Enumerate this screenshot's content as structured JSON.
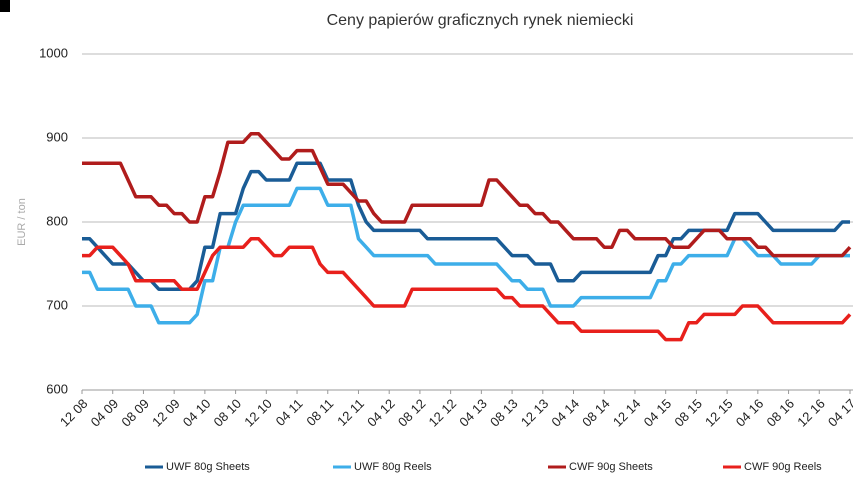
{
  "chart_data": {
    "type": "line",
    "title": "Ceny papierów graficznych rynek niemiecki",
    "y_label": "EUR / ton",
    "categories": [
      "12 08",
      null,
      null,
      null,
      "04 09",
      null,
      null,
      null,
      "08 09",
      null,
      null,
      null,
      "12 09",
      null,
      null,
      null,
      "04 10",
      null,
      null,
      null,
      "08 10",
      null,
      null,
      null,
      "12 10",
      null,
      null,
      null,
      "04 11",
      null,
      null,
      null,
      "08 11",
      null,
      null,
      null,
      "12 11",
      null,
      null,
      null,
      "04 12",
      null,
      null,
      null,
      "08 12",
      null,
      null,
      null,
      "12 12",
      null,
      null,
      null,
      "04 13",
      null,
      null,
      null,
      "08 13",
      null,
      null,
      null,
      "12 13",
      null,
      null,
      null,
      "04 14",
      null,
      null,
      null,
      "08 14",
      null,
      null,
      null,
      "12 14",
      null,
      null,
      null,
      "04 15",
      null,
      null,
      null,
      "08 15",
      null,
      null,
      null,
      "12 15",
      null,
      null,
      null,
      "04 16",
      null,
      null,
      null,
      "08 16",
      null,
      null,
      null,
      "12 16",
      null,
      null,
      null,
      "04 17"
    ],
    "series": [
      {
        "name": "UWF 80g Sheets",
        "color": "#1a5c96",
        "values": [
          780,
          780,
          770,
          760,
          750,
          750,
          750,
          740,
          730,
          730,
          720,
          720,
          720,
          720,
          720,
          730,
          770,
          770,
          810,
          810,
          810,
          840,
          860,
          860,
          850,
          850,
          850,
          850,
          870,
          870,
          870,
          870,
          850,
          850,
          850,
          850,
          820,
          800,
          790,
          790,
          790,
          790,
          790,
          790,
          790,
          780,
          780,
          780,
          780,
          780,
          780,
          780,
          780,
          780,
          780,
          770,
          760,
          760,
          760,
          750,
          750,
          750,
          730,
          730,
          730,
          740,
          740,
          740,
          740,
          740,
          740,
          740,
          740,
          740,
          740,
          760,
          760,
          780,
          780,
          790,
          790,
          790,
          790,
          790,
          790,
          810,
          810,
          810,
          810,
          800,
          790,
          790,
          790,
          790,
          790,
          790,
          790,
          790,
          790,
          800,
          800
        ]
      },
      {
        "name": "UWF 80g Reels",
        "color": "#3daee9",
        "values": [
          740,
          740,
          720,
          720,
          720,
          720,
          720,
          700,
          700,
          700,
          680,
          680,
          680,
          680,
          680,
          690,
          730,
          730,
          770,
          770,
          800,
          820,
          820,
          820,
          820,
          820,
          820,
          820,
          840,
          840,
          840,
          840,
          820,
          820,
          820,
          820,
          780,
          770,
          760,
          760,
          760,
          760,
          760,
          760,
          760,
          760,
          750,
          750,
          750,
          750,
          750,
          750,
          750,
          750,
          750,
          740,
          730,
          730,
          720,
          720,
          720,
          700,
          700,
          700,
          700,
          710,
          710,
          710,
          710,
          710,
          710,
          710,
          710,
          710,
          710,
          730,
          730,
          750,
          750,
          760,
          760,
          760,
          760,
          760,
          760,
          780,
          780,
          770,
          760,
          760,
          760,
          750,
          750,
          750,
          750,
          750,
          760,
          760,
          760,
          760,
          760
        ]
      },
      {
        "name": "CWF 90g Sheets",
        "color": "#b01c1c",
        "values": [
          870,
          870,
          870,
          870,
          870,
          870,
          850,
          830,
          830,
          830,
          820,
          820,
          810,
          810,
          800,
          800,
          830,
          830,
          860,
          895,
          895,
          895,
          905,
          905,
          895,
          885,
          875,
          875,
          885,
          885,
          885,
          865,
          845,
          845,
          845,
          835,
          825,
          825,
          810,
          800,
          800,
          800,
          800,
          820,
          820,
          820,
          820,
          820,
          820,
          820,
          820,
          820,
          820,
          850,
          850,
          840,
          830,
          820,
          820,
          810,
          810,
          800,
          800,
          790,
          780,
          780,
          780,
          780,
          770,
          770,
          790,
          790,
          780,
          780,
          780,
          780,
          780,
          770,
          770,
          770,
          780,
          790,
          790,
          790,
          780,
          780,
          780,
          780,
          770,
          770,
          760,
          760,
          760,
          760,
          760,
          760,
          760,
          760,
          760,
          760,
          770
        ]
      },
      {
        "name": "CWF 90g Reels",
        "color": "#e8201c",
        "values": [
          760,
          760,
          770,
          770,
          770,
          760,
          750,
          730,
          730,
          730,
          730,
          730,
          730,
          720,
          720,
          720,
          740,
          760,
          770,
          770,
          770,
          770,
          780,
          780,
          770,
          760,
          760,
          770,
          770,
          770,
          770,
          750,
          740,
          740,
          740,
          730,
          720,
          710,
          700,
          700,
          700,
          700,
          700,
          720,
          720,
          720,
          720,
          720,
          720,
          720,
          720,
          720,
          720,
          720,
          720,
          710,
          710,
          700,
          700,
          700,
          700,
          690,
          680,
          680,
          680,
          670,
          670,
          670,
          670,
          670,
          670,
          670,
          670,
          670,
          670,
          670,
          660,
          660,
          660,
          680,
          680,
          690,
          690,
          690,
          690,
          690,
          700,
          700,
          700,
          690,
          680,
          680,
          680,
          680,
          680,
          680,
          680,
          680,
          680,
          680,
          690
        ]
      }
    ],
    "ylim": [
      600,
      1000
    ],
    "yticks": [
      600,
      700,
      800,
      900,
      1000
    ],
    "grid": true,
    "legend": "bottom"
  }
}
